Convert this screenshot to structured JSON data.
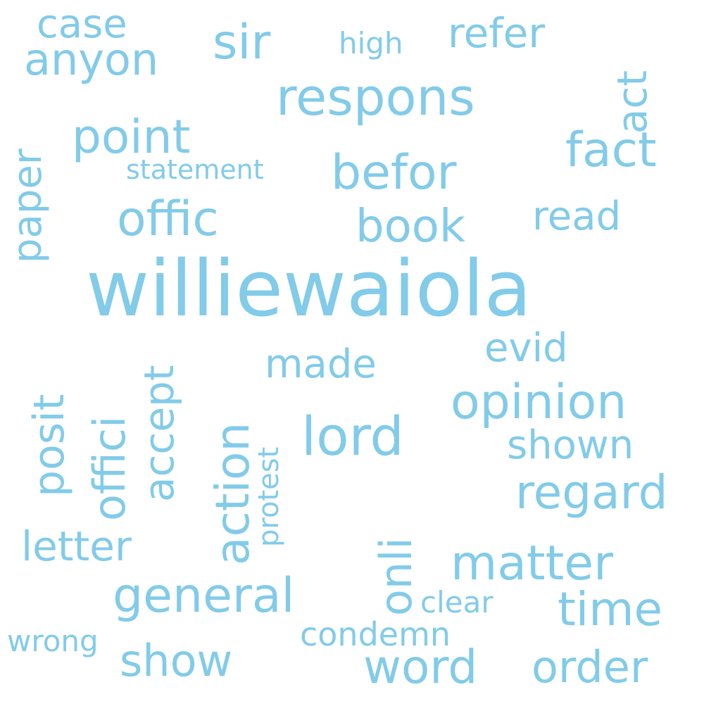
{
  "word_color": "#82cbe9",
  "background": "#ffffff",
  "words": {
    "williewaiola": "williewaiola",
    "respons": "respons",
    "lord": "lord",
    "opinion": "opinion",
    "befor": "befor",
    "offic": "offic",
    "regard": "regard",
    "matter": "matter",
    "general": "general",
    "fact": "fact",
    "point": "point",
    "book": "book",
    "sir": "sir",
    "refer": "refer",
    "anyon": "anyon",
    "case": "case",
    "letter": "letter",
    "show": "show",
    "word": "word",
    "order": "order",
    "time": "time",
    "shown": "shown",
    "made": "made",
    "evid": "evid",
    "read": "read",
    "action": "action",
    "offici": "offici",
    "accept": "accept",
    "posit": "posit",
    "paper": "paper",
    "act": "act",
    "onli": "onli",
    "high": "high",
    "statement": "statement",
    "condemn": "condemn",
    "clear": "clear",
    "wrong": "wrong",
    "protest": "protest"
  }
}
